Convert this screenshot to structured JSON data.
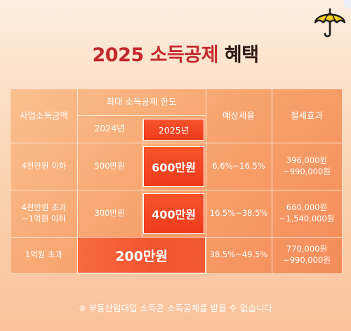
{
  "title": {
    "highlight": "2025 소득공제",
    "rest": " 혜택"
  },
  "table": {
    "headers": {
      "income": "사업소득금액",
      "max_limit": "최대 소득공제 한도",
      "year_2024": "2024년",
      "year_2025": "2025년",
      "tax_rate": "예상세율",
      "saving": "절세효과"
    },
    "rows": [
      {
        "income": "4천만원 이하",
        "limit_2024": "500만원",
        "limit_2025": "600만원",
        "tax_rate": "6.6%~16.5%",
        "saving_1": "396,000원",
        "saving_2": "~990,000원"
      },
      {
        "income_1": "4천만원 초과",
        "income_2": "~1억원 이하",
        "limit_2024": "300만원",
        "limit_2025": "400만원",
        "tax_rate": "16.5%~38.5%",
        "saving_1": "660,000원",
        "saving_2": "~1,540,000원"
      },
      {
        "income": "1억원 초과",
        "limit_both": "200만원",
        "tax_rate": "38.5%~49.5%",
        "saving_1": "770,000원",
        "saving_2": "~990,000원"
      }
    ]
  },
  "note": "※ 부동산임대업 소득은 소득공제를 받을 수 없습니다",
  "colors": {
    "accent_red": "#c3282e",
    "highlight_box": "#f04a24"
  },
  "icons": {
    "top_right": "umbrella-icon"
  }
}
